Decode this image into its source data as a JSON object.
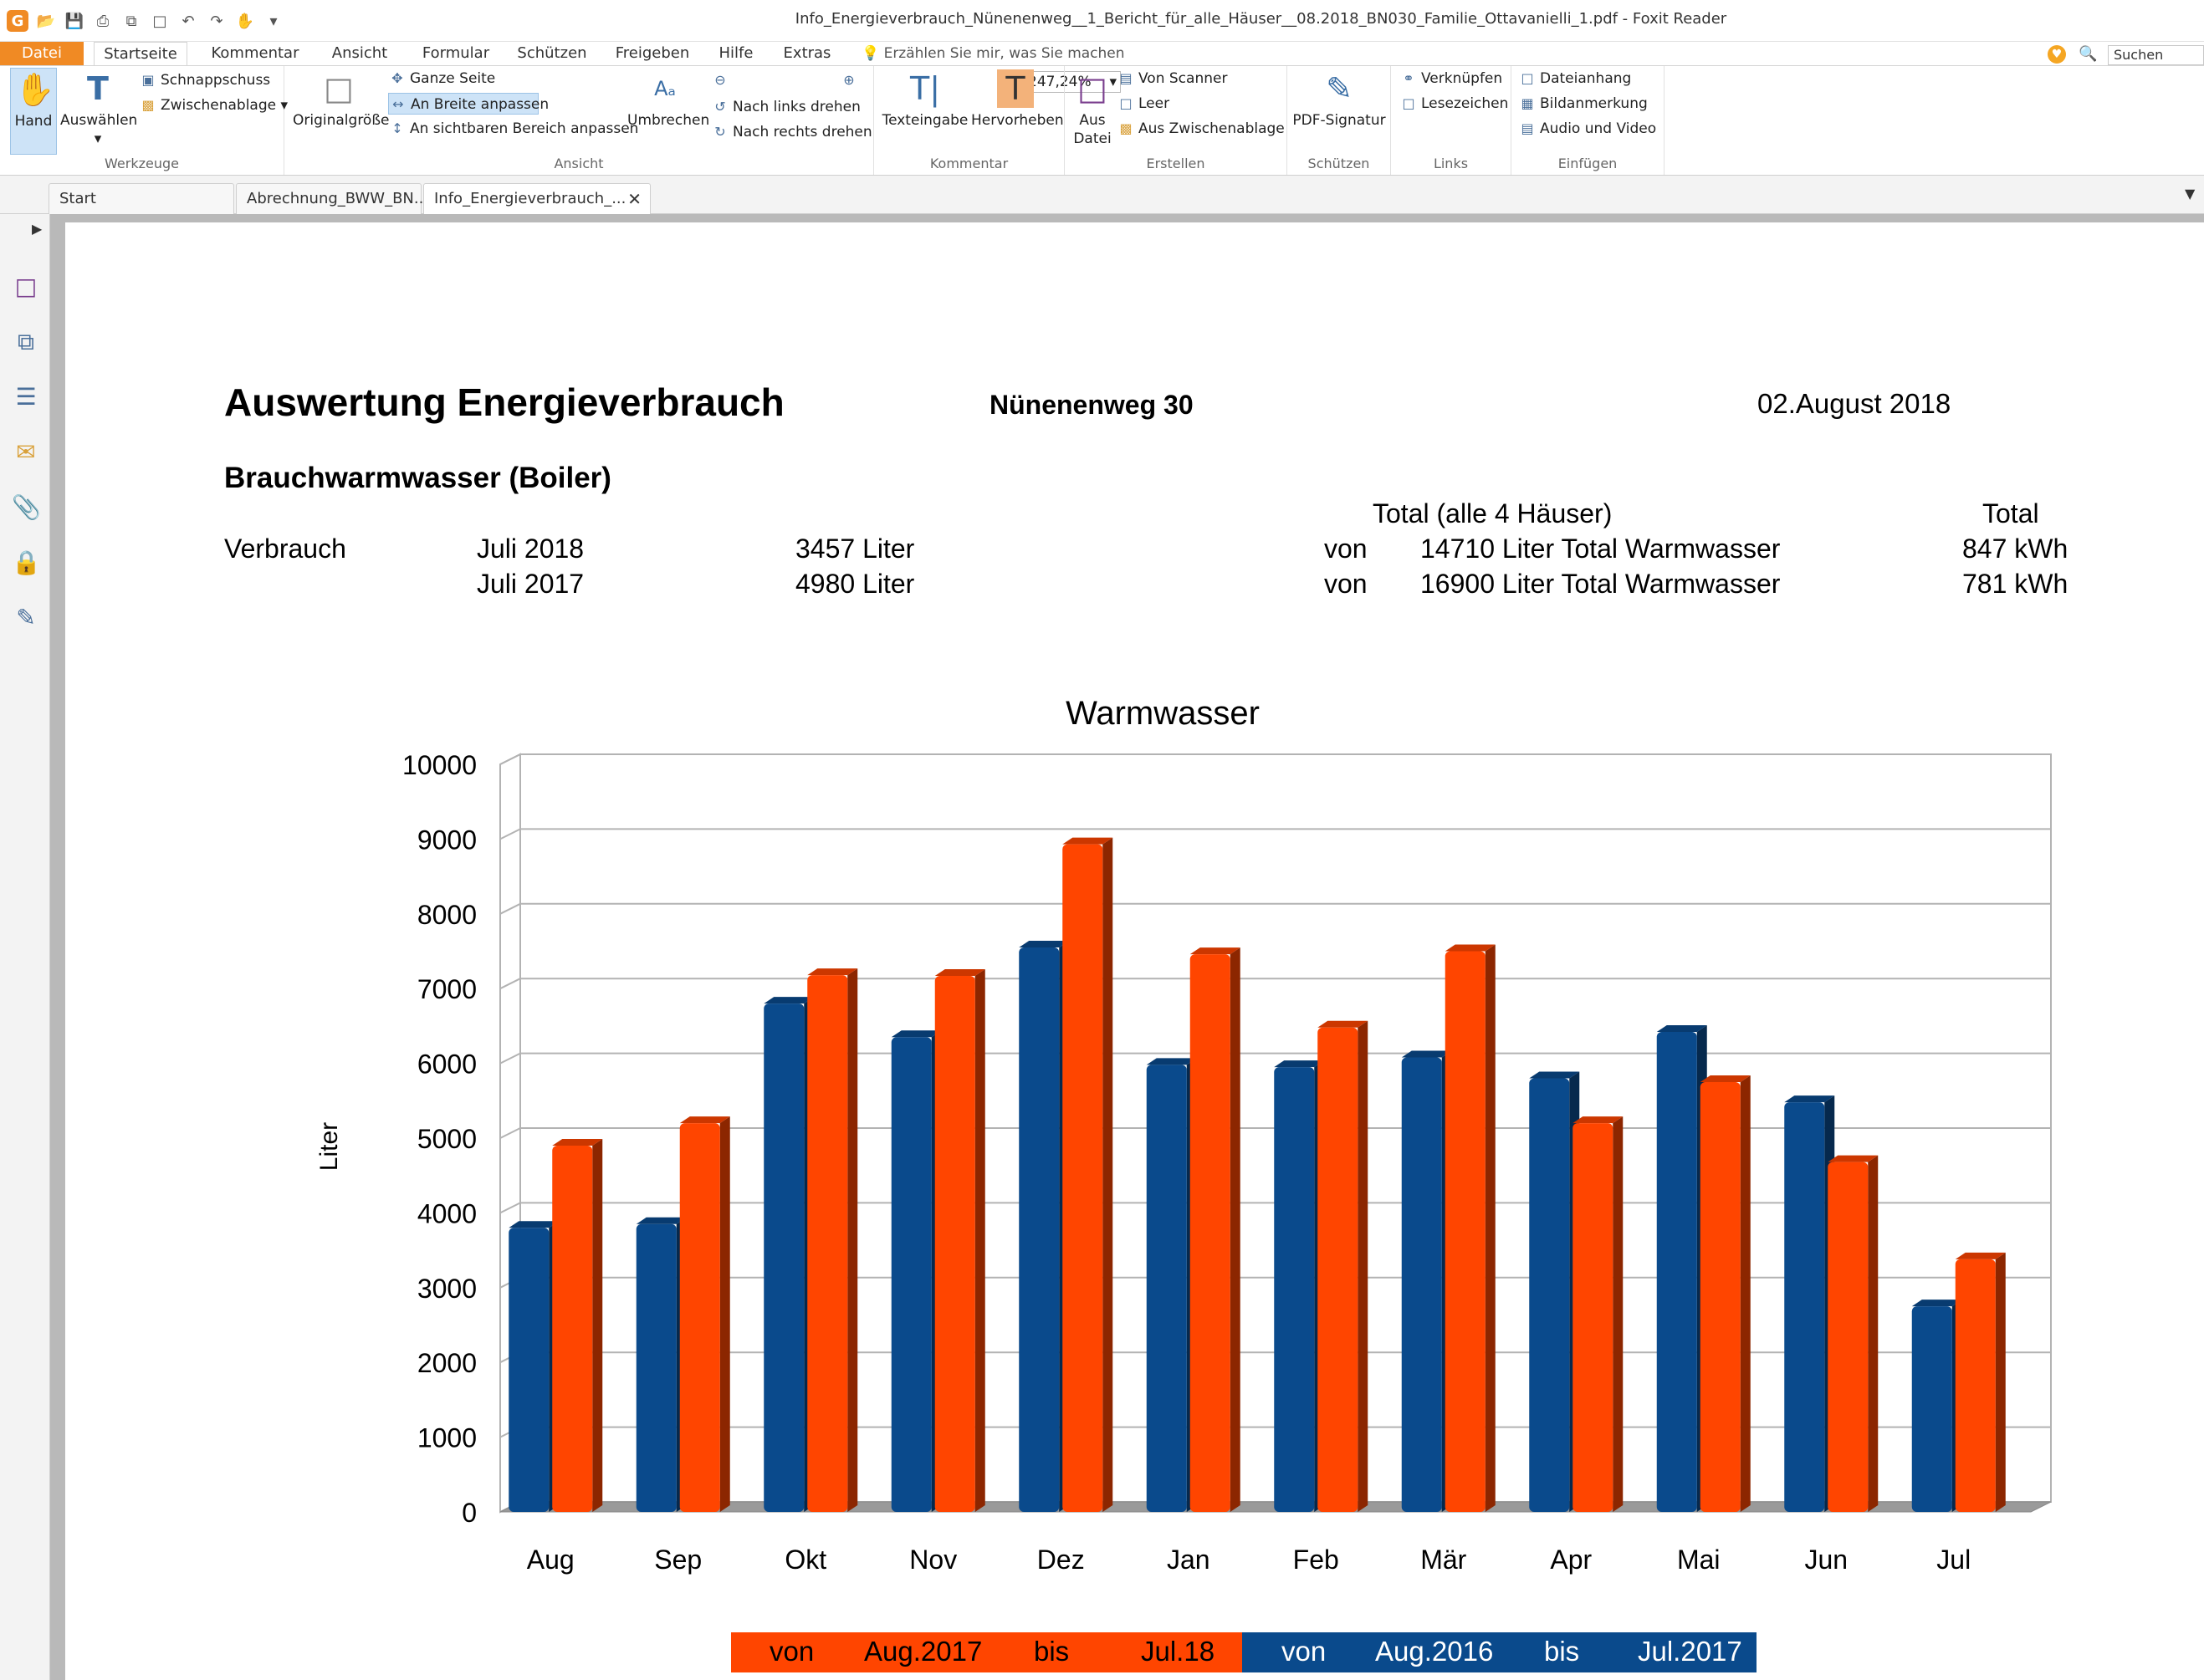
{
  "window": {
    "title": "Info_Energieverbrauch_Nünenenweg__1_Bericht_für_alle_Häuser__08.2018_BN030_Familie_Ottavanielli_1.pdf - Foxit Reader"
  },
  "ribbon_tabs": [
    "Datei",
    "Startseite",
    "Kommentar",
    "Ansicht",
    "Formular",
    "Schützen",
    "Freigeben",
    "Hilfe",
    "Extras"
  ],
  "tell_me": "Erzählen Sie mir, was Sie machen",
  "search_placeholder": "Suchen",
  "ribbon": {
    "werkzeuge": {
      "label": "Werkzeuge",
      "hand": "Hand",
      "select": "Auswählen",
      "snapshot": "Schnappschuss",
      "clipboard": "Zwischenablage"
    },
    "ansicht": {
      "label": "Ansicht",
      "actual_size": "Originalgröße",
      "fit_page": "Ganze Seite",
      "fit_width": "An Breite anpassen",
      "fit_visible": "An sichtbaren Bereich anpassen",
      "reflow": "Umbrechen",
      "zoom": "247,24%",
      "rotate_left": "Nach links drehen",
      "rotate_right": "Nach rechts drehen"
    },
    "kommentar": {
      "label": "Kommentar",
      "typewriter": "Texteingabe",
      "highlight": "Hervorheben"
    },
    "erstellen": {
      "label": "Erstellen",
      "from_file_1": "Aus",
      "from_file_2": "Datei",
      "from_scanner": "Von Scanner",
      "blank": "Leer",
      "from_clipboard": "Aus Zwischenablage"
    },
    "schuetzen": {
      "label": "Schützen",
      "signature": "PDF-Signatur"
    },
    "links": {
      "label": "Links",
      "link": "Verknüpfen",
      "bookmark": "Lesezeichen"
    },
    "einfuegen": {
      "label": "Einfügen",
      "attachment": "Dateianhang",
      "image": "Bildanmerkung",
      "media": "Audio und Video"
    }
  },
  "doc_tabs": [
    "Start",
    "Abrechnung_BWW_BN...",
    "Info_Energieverbrauch_..."
  ],
  "document": {
    "title": "Auswertung Energieverbrauch",
    "address": "Nünenenweg 30",
    "date": "02.August 2018",
    "subtitle": "Brauchwarmwasser (Boiler)",
    "total_header": "Total (alle 4 Häuser)",
    "total_header_right": "Total",
    "verbrauch_label": "Verbrauch",
    "rows": [
      {
        "period": "Juli 2018",
        "liter": "3457 Liter",
        "von": "von",
        "total": "14710 Liter Total Warmwasser",
        "kwh": "847 kWh"
      },
      {
        "period": "Juli 2017",
        "liter": "4980 Liter",
        "von": "von",
        "total": "16900 Liter Total Warmwasser",
        "kwh": "781 kWh"
      }
    ]
  },
  "chart_data": {
    "type": "bar",
    "title": "Warmwasser",
    "ylabel": "Liter",
    "xlabel": "",
    "ylim": [
      0,
      10000
    ],
    "yticks": [
      0,
      1000,
      2000,
      3000,
      4000,
      5000,
      6000,
      7000,
      8000,
      9000,
      10000
    ],
    "categories": [
      "Aug",
      "Sep",
      "Okt",
      "Nov",
      "Dez",
      "Jan",
      "Feb",
      "Mär",
      "Apr",
      "Mai",
      "Jun",
      "Jul"
    ],
    "series": [
      {
        "values": [
          3800,
          3850,
          6800,
          6350,
          7550,
          5980,
          5950,
          6080,
          5800,
          6420,
          5480,
          2750
        ],
        "color": "#0a4a8c"
      },
      {
        "values": [
          4900,
          5200,
          7180,
          7170,
          8930,
          7460,
          6480,
          7500,
          5200,
          5750,
          4680,
          3380
        ],
        "color": "#ff4500"
      }
    ],
    "grid": true,
    "legend_position": "bottom",
    "legend": {
      "red": {
        "von": "von",
        "from": "Aug.2017",
        "bis": "bis",
        "to": "Jul.18",
        "color": "#ff4500"
      },
      "blue": {
        "von": "von",
        "from": "Aug.2016",
        "bis": "bis",
        "to": "Jul.2017",
        "color": "#0a4a8c"
      }
    }
  }
}
